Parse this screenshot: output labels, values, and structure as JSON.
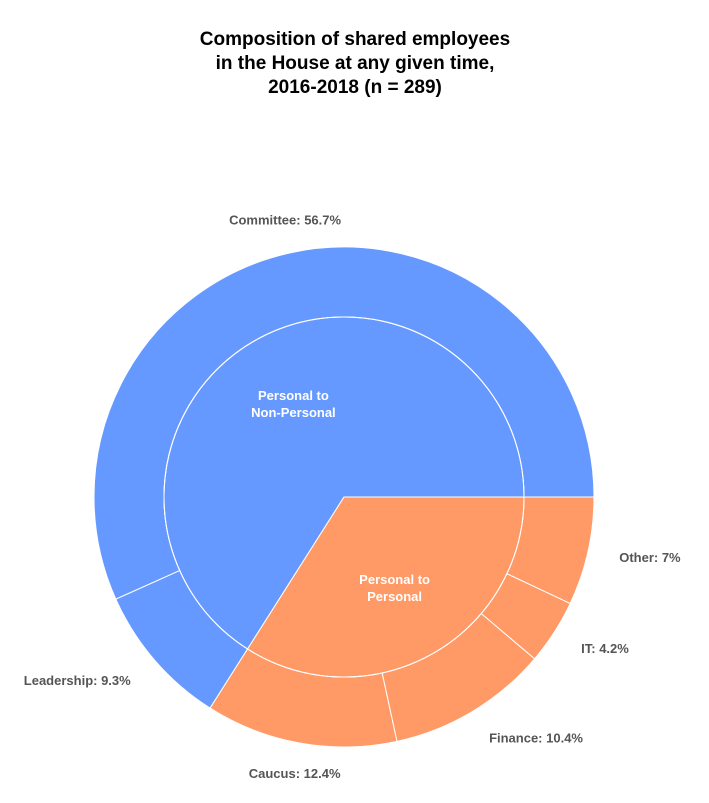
{
  "chart_data": {
    "type": "nested-pie",
    "title": [
      "Composition of shared employees",
      "in the House at any given time,",
      "2016-2018 (n = 289)"
    ],
    "inner": {
      "labels": [
        "Personal to Non-Personal",
        "Personal to Personal"
      ],
      "values": [
        66,
        34
      ],
      "colors": [
        "#6699ff",
        "#ff9966"
      ]
    },
    "outer": {
      "labels": [
        "Committee: 56.7%",
        "Leadership: 9.3%",
        "Caucus: 12.4%",
        "Finance: 10.4%",
        "IT: 4.2%",
        "Other: 7%"
      ],
      "values": [
        56.7,
        9.3,
        12.4,
        10.4,
        4.2,
        7
      ],
      "groups": [
        0,
        0,
        1,
        1,
        1,
        1
      ]
    }
  }
}
